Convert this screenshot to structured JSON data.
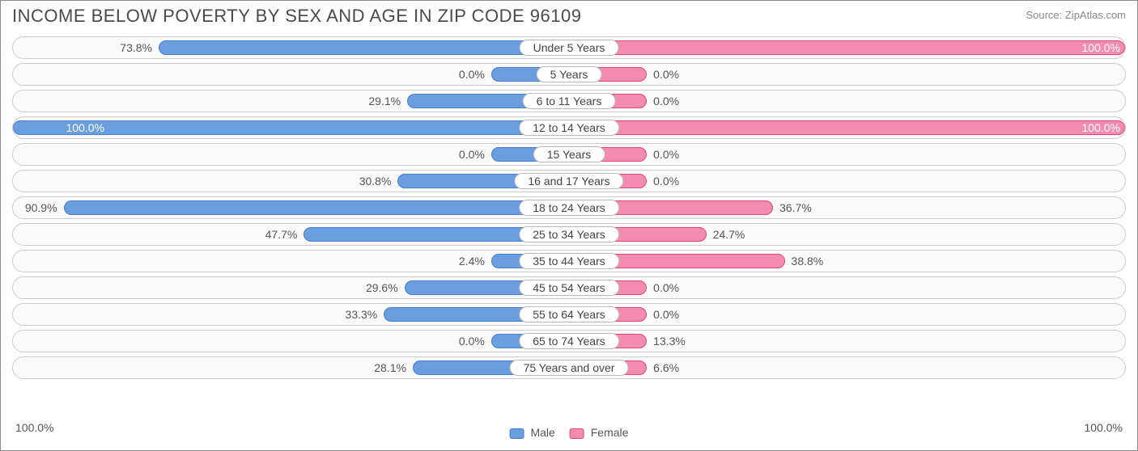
{
  "title": "INCOME BELOW POVERTY BY SEX AND AGE IN ZIP CODE 96109",
  "source": "Source: ZipAtlas.com",
  "colors": {
    "male_fill": "#6b9ede",
    "male_border": "#4a7fc9",
    "female_fill": "#f48bb1",
    "female_border": "#d94a7a",
    "row_bg": "#fafafa",
    "row_border": "#cccccc",
    "text": "#555555"
  },
  "axis": {
    "left_label": "100.0%",
    "right_label": "100.0%",
    "max": 100.0
  },
  "legend": {
    "male": "Male",
    "female": "Female"
  },
  "min_bar_pct": 14,
  "rows": [
    {
      "category": "Under 5 Years",
      "male": 73.8,
      "female": 100.0
    },
    {
      "category": "5 Years",
      "male": 0.0,
      "female": 0.0
    },
    {
      "category": "6 to 11 Years",
      "male": 29.1,
      "female": 0.0
    },
    {
      "category": "12 to 14 Years",
      "male": 100.0,
      "female": 100.0
    },
    {
      "category": "15 Years",
      "male": 0.0,
      "female": 0.0
    },
    {
      "category": "16 and 17 Years",
      "male": 30.8,
      "female": 0.0
    },
    {
      "category": "18 to 24 Years",
      "male": 90.9,
      "female": 36.7
    },
    {
      "category": "25 to 34 Years",
      "male": 47.7,
      "female": 24.7
    },
    {
      "category": "35 to 44 Years",
      "male": 2.4,
      "female": 38.8
    },
    {
      "category": "45 to 54 Years",
      "male": 29.6,
      "female": 0.0
    },
    {
      "category": "55 to 64 Years",
      "male": 33.3,
      "female": 0.0
    },
    {
      "category": "65 to 74 Years",
      "male": 0.0,
      "female": 13.3
    },
    {
      "category": "75 Years and over",
      "male": 28.1,
      "female": 6.6
    }
  ]
}
